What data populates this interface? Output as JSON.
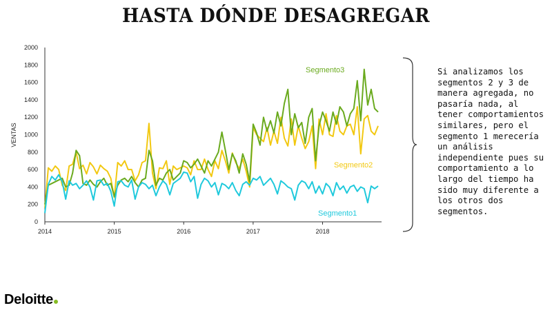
{
  "page": {
    "title": "HASTA DÓNDE DESAGREGAR"
  },
  "annotation": "Si analizamos los segmentos 2 y 3 de manera agregada, no pasaría nada, al tener comportamientos similares, pero el segmento 1 merecería un análisis independiente pues su comportamiento a lo largo del tiempo ha sido muy diferente a los otros dos segmentos.",
  "brand": {
    "logo_text": "Deloitte",
    "logo_dot": ".",
    "dot_color": "#86BC25"
  },
  "colors": {
    "segmento1": "#1FC9DC",
    "segmento2": "#F2C811",
    "segmento3": "#6AAA1E",
    "axis": "#333333"
  },
  "chart_data": {
    "type": "line",
    "title": "",
    "xlabel": "",
    "ylabel": "VENTAS",
    "ylim": [
      0,
      2000
    ],
    "yticks": [
      0,
      200,
      400,
      600,
      800,
      1000,
      1200,
      1400,
      1600,
      1800,
      2000
    ],
    "xlim": [
      2014.0,
      2018.85
    ],
    "xticks": [
      "2014",
      "2015",
      "2016",
      "2017",
      "2018"
    ],
    "legend": "inline labels",
    "grid": false,
    "series": [
      {
        "name": "Segmento1",
        "color": "#1FC9DC",
        "x": [
          2014.0,
          2014.05,
          2014.1,
          2014.15,
          2014.2,
          2014.25,
          2014.3,
          2014.35,
          2014.4,
          2014.45,
          2014.5,
          2014.55,
          2014.6,
          2014.65,
          2014.7,
          2014.75,
          2014.8,
          2014.85,
          2014.9,
          2014.95,
          2015.0,
          2015.05,
          2015.1,
          2015.15,
          2015.2,
          2015.25,
          2015.3,
          2015.35,
          2015.4,
          2015.45,
          2015.5,
          2015.55,
          2015.6,
          2015.65,
          2015.7,
          2015.75,
          2015.8,
          2015.85,
          2015.9,
          2015.95,
          2016.0,
          2016.05,
          2016.1,
          2016.15,
          2016.2,
          2016.25,
          2016.3,
          2016.35,
          2016.4,
          2016.45,
          2016.5,
          2016.55,
          2016.6,
          2016.65,
          2016.7,
          2016.75,
          2016.8,
          2016.85,
          2016.9,
          2016.95,
          2017.0,
          2017.05,
          2017.1,
          2017.15,
          2017.2,
          2017.25,
          2017.3,
          2017.35,
          2017.4,
          2017.45,
          2017.5,
          2017.55,
          2017.6,
          2017.65,
          2017.7,
          2017.75,
          2017.8,
          2017.85,
          2017.9,
          2017.95,
          2018.0,
          2018.05,
          2018.1,
          2018.15,
          2018.2,
          2018.25,
          2018.3,
          2018.35,
          2018.4,
          2018.45,
          2018.5,
          2018.55,
          2018.6,
          2018.65,
          2018.7,
          2018.75,
          2018.8
        ],
        "values": [
          100,
          430,
          520,
          480,
          540,
          460,
          260,
          470,
          420,
          440,
          380,
          420,
          470,
          400,
          250,
          470,
          480,
          420,
          440,
          350,
          180,
          460,
          470,
          420,
          400,
          480,
          260,
          400,
          450,
          430,
          380,
          420,
          300,
          400,
          470,
          430,
          310,
          440,
          470,
          500,
          570,
          560,
          460,
          520,
          270,
          430,
          500,
          470,
          400,
          450,
          310,
          440,
          420,
          380,
          450,
          360,
          300,
          430,
          460,
          420,
          500,
          480,
          520,
          420,
          460,
          500,
          430,
          320,
          470,
          440,
          400,
          380,
          250,
          420,
          470,
          450,
          380,
          460,
          330,
          410,
          320,
          440,
          400,
          300,
          450,
          370,
          410,
          330,
          400,
          420,
          350,
          400,
          380,
          220,
          410,
          380,
          410
        ]
      },
      {
        "name": "Segmento2",
        "color": "#F2C811",
        "x": [
          2014.0,
          2014.05,
          2014.1,
          2014.15,
          2014.2,
          2014.25,
          2014.3,
          2014.35,
          2014.4,
          2014.45,
          2014.5,
          2014.55,
          2014.6,
          2014.65,
          2014.7,
          2014.75,
          2014.8,
          2014.85,
          2014.9,
          2014.95,
          2015.0,
          2015.05,
          2015.1,
          2015.15,
          2015.2,
          2015.25,
          2015.3,
          2015.35,
          2015.4,
          2015.45,
          2015.5,
          2015.55,
          2015.6,
          2015.65,
          2015.7,
          2015.75,
          2015.8,
          2015.85,
          2015.9,
          2015.95,
          2016.0,
          2016.05,
          2016.1,
          2016.15,
          2016.2,
          2016.25,
          2016.3,
          2016.35,
          2016.4,
          2016.45,
          2016.5,
          2016.55,
          2016.6,
          2016.65,
          2016.7,
          2016.75,
          2016.8,
          2016.85,
          2016.9,
          2016.95,
          2017.0,
          2017.05,
          2017.1,
          2017.15,
          2017.2,
          2017.25,
          2017.3,
          2017.35,
          2017.4,
          2017.45,
          2017.5,
          2017.55,
          2017.6,
          2017.65,
          2017.7,
          2017.75,
          2017.8,
          2017.85,
          2017.9,
          2017.95,
          2018.0,
          2018.05,
          2018.1,
          2018.15,
          2018.2,
          2018.25,
          2018.3,
          2018.35,
          2018.4,
          2018.45,
          2018.5,
          2018.55,
          2018.6,
          2018.65,
          2018.7,
          2018.75,
          2018.8
        ],
        "values": [
          160,
          620,
          580,
          640,
          600,
          420,
          360,
          640,
          660,
          800,
          610,
          650,
          550,
          680,
          630,
          550,
          650,
          610,
          580,
          500,
          280,
          680,
          640,
          700,
          600,
          600,
          470,
          540,
          680,
          700,
          1130,
          560,
          380,
          620,
          610,
          700,
          430,
          640,
          600,
          620,
          640,
          620,
          540,
          700,
          600,
          600,
          720,
          600,
          520,
          700,
          610,
          820,
          700,
          560,
          790,
          680,
          610,
          720,
          580,
          400,
          1080,
          1000,
          960,
          920,
          1080,
          880,
          1040,
          900,
          1200,
          960,
          870,
          1180,
          880,
          1100,
          960,
          840,
          920,
          1100,
          610,
          1180,
          1000,
          1240,
          1000,
          980,
          1220,
          1040,
          1000,
          1100,
          1120,
          1000,
          1320,
          780,
          1180,
          1220,
          1040,
          1000,
          1100
        ]
      },
      {
        "name": "Segmento3",
        "color": "#6AAA1E",
        "x": [
          2014.0,
          2014.05,
          2014.1,
          2014.15,
          2014.2,
          2014.25,
          2014.3,
          2014.35,
          2014.4,
          2014.45,
          2014.5,
          2014.55,
          2014.6,
          2014.65,
          2014.7,
          2014.75,
          2014.8,
          2014.85,
          2014.9,
          2014.95,
          2015.0,
          2015.05,
          2015.1,
          2015.15,
          2015.2,
          2015.25,
          2015.3,
          2015.35,
          2015.4,
          2015.45,
          2015.5,
          2015.55,
          2015.6,
          2015.65,
          2015.7,
          2015.75,
          2015.8,
          2015.85,
          2015.9,
          2015.95,
          2016.0,
          2016.05,
          2016.1,
          2016.15,
          2016.2,
          2016.25,
          2016.3,
          2016.35,
          2016.4,
          2016.45,
          2016.5,
          2016.55,
          2016.6,
          2016.65,
          2016.7,
          2016.75,
          2016.8,
          2016.85,
          2016.9,
          2016.95,
          2017.0,
          2017.05,
          2017.1,
          2017.15,
          2017.2,
          2017.25,
          2017.3,
          2017.35,
          2017.4,
          2017.45,
          2017.5,
          2017.55,
          2017.6,
          2017.65,
          2017.7,
          2017.75,
          2017.8,
          2017.85,
          2017.9,
          2017.95,
          2018.0,
          2018.05,
          2018.1,
          2018.15,
          2018.2,
          2018.25,
          2018.3,
          2018.35,
          2018.4,
          2018.45,
          2018.5,
          2018.55,
          2018.6,
          2018.65,
          2018.7,
          2018.75,
          2018.8
        ],
        "values": [
          200,
          420,
          440,
          460,
          480,
          500,
          400,
          420,
          560,
          820,
          760,
          440,
          420,
          480,
          430,
          400,
          460,
          500,
          420,
          440,
          290,
          420,
          480,
          500,
          460,
          520,
          450,
          400,
          480,
          500,
          820,
          700,
          420,
          500,
          480,
          560,
          600,
          480,
          520,
          560,
          700,
          680,
          620,
          660,
          720,
          640,
          560,
          700,
          640,
          720,
          800,
          1030,
          820,
          600,
          780,
          700,
          560,
          780,
          660,
          460,
          1120,
          1020,
          880,
          1200,
          1040,
          1160,
          1020,
          1260,
          1100,
          1360,
          1520,
          1000,
          1240,
          1080,
          1140,
          900,
          1200,
          1300,
          700,
          1100,
          1260,
          1160,
          1040,
          1260,
          1120,
          1320,
          1260,
          1100,
          1240,
          1300,
          1620,
          1160,
          1750,
          1340,
          1520,
          1300,
          1260
        ]
      }
    ]
  }
}
